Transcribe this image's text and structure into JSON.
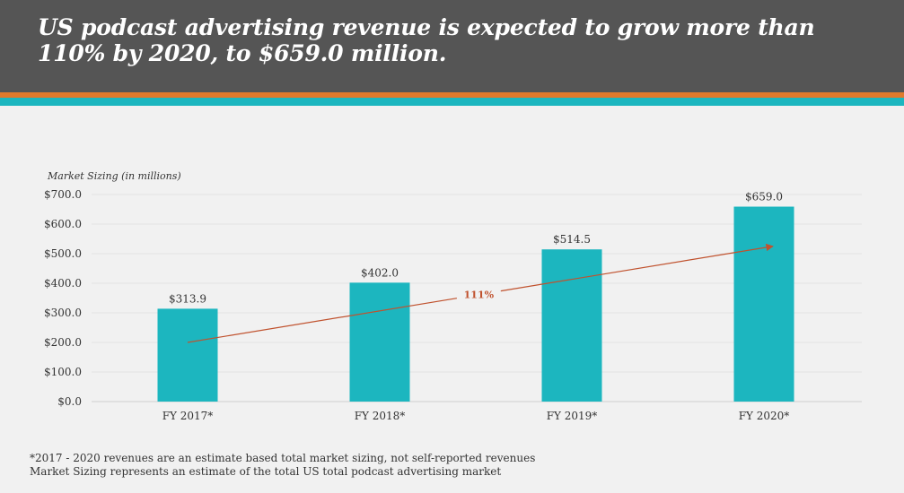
{
  "header": {
    "title": "US podcast advertising revenue is expected to grow more than 110% by 2020, to $659.0 million."
  },
  "colors": {
    "header_bg": "#555555",
    "stripe_orange": "#e07a2c",
    "stripe_teal": "#1cb6bf",
    "bar": "#1cb6bf",
    "trend": "#c0522e"
  },
  "chart_data": {
    "type": "bar",
    "ylabel": "Market Sizing (in millions)",
    "categories": [
      "FY 2017*",
      "FY 2018*",
      "FY 2019*",
      "FY 2020*"
    ],
    "values": [
      313.9,
      402.0,
      514.5,
      659.0
    ],
    "value_labels": [
      "$313.9",
      "$402.0",
      "$514.5",
      "$659.0"
    ],
    "y_ticks": [
      0,
      100,
      200,
      300,
      400,
      500,
      600,
      700
    ],
    "y_tick_labels": [
      "$0.0",
      "$100.0",
      "$200.0",
      "$300.0",
      "$400.0",
      "$500.0",
      "$600.0",
      "$700.0"
    ],
    "ylim": [
      0,
      700
    ],
    "grid": true,
    "trend": {
      "from_category": "FY 2017*",
      "to_category": "FY 2020*",
      "from_value": 200,
      "to_value": 525,
      "label": "111%"
    }
  },
  "footnotes": [
    "*2017 - 2020 revenues are an estimate based total market sizing, not self-reported revenues",
    "Market Sizing represents an estimate of the total US total podcast advertising market"
  ]
}
